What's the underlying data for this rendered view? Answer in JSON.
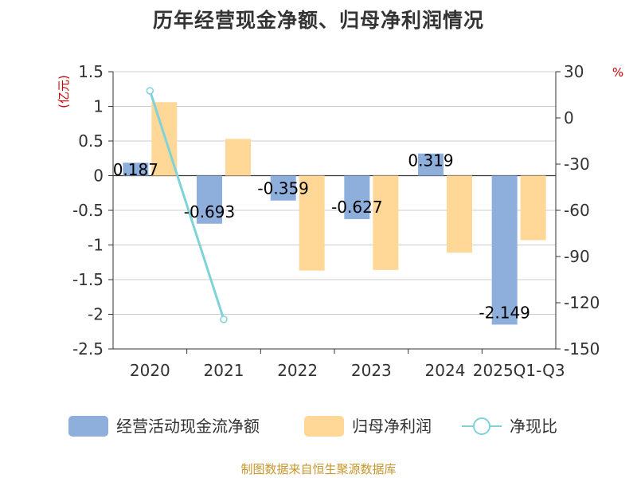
{
  "title": "历年经营现金净额、归母净利润情况",
  "source": "制图数据来自恒生聚源数据库",
  "colors": {
    "bar_cash": "#8eaedc",
    "bar_profit": "#ffd796",
    "line_ratio": "#7fd3d8",
    "unit": "#cc0000",
    "axis": "#333333",
    "grid": "#cccccc",
    "source": "#c8962c"
  },
  "chart_data": {
    "type": "bar",
    "title": "历年经营现金净额、归母净利润情况",
    "categories": [
      "2020",
      "2021",
      "2022",
      "2023",
      "2024",
      "2025Q1-Q3"
    ],
    "y_left": {
      "unit": "(亿元)",
      "min": -2.5,
      "max": 1.5,
      "ticks": [
        "-2.5",
        "-2",
        "-1.5",
        "-1",
        "-0.5",
        "0",
        "0.5",
        "1",
        "1.5"
      ]
    },
    "y_right": {
      "unit": "%",
      "min": -150,
      "max": 30,
      "ticks": [
        "-150",
        "-120",
        "-90",
        "-60",
        "-30",
        "0",
        "30"
      ]
    },
    "series": [
      {
        "name": "经营活动现金流净额",
        "kind": "bar",
        "axis": "left",
        "color": "#8eaedc",
        "values": [
          0.187,
          -0.693,
          -0.359,
          -0.627,
          0.319,
          -2.149
        ],
        "labels": [
          "0.187",
          "-0.693",
          "-0.359",
          "-0.627",
          "0.319",
          "-2.149"
        ]
      },
      {
        "name": "归母净利润",
        "kind": "bar",
        "axis": "left",
        "color": "#ffd796",
        "values": [
          1.06,
          0.53,
          -1.37,
          -1.36,
          -1.11,
          -0.93
        ]
      },
      {
        "name": "净现比",
        "kind": "line",
        "axis": "right",
        "color": "#7fd3d8",
        "values": [
          17.6,
          -130.8,
          null,
          null,
          null,
          null
        ]
      }
    ],
    "legend_position": "bottom",
    "grid": true
  }
}
